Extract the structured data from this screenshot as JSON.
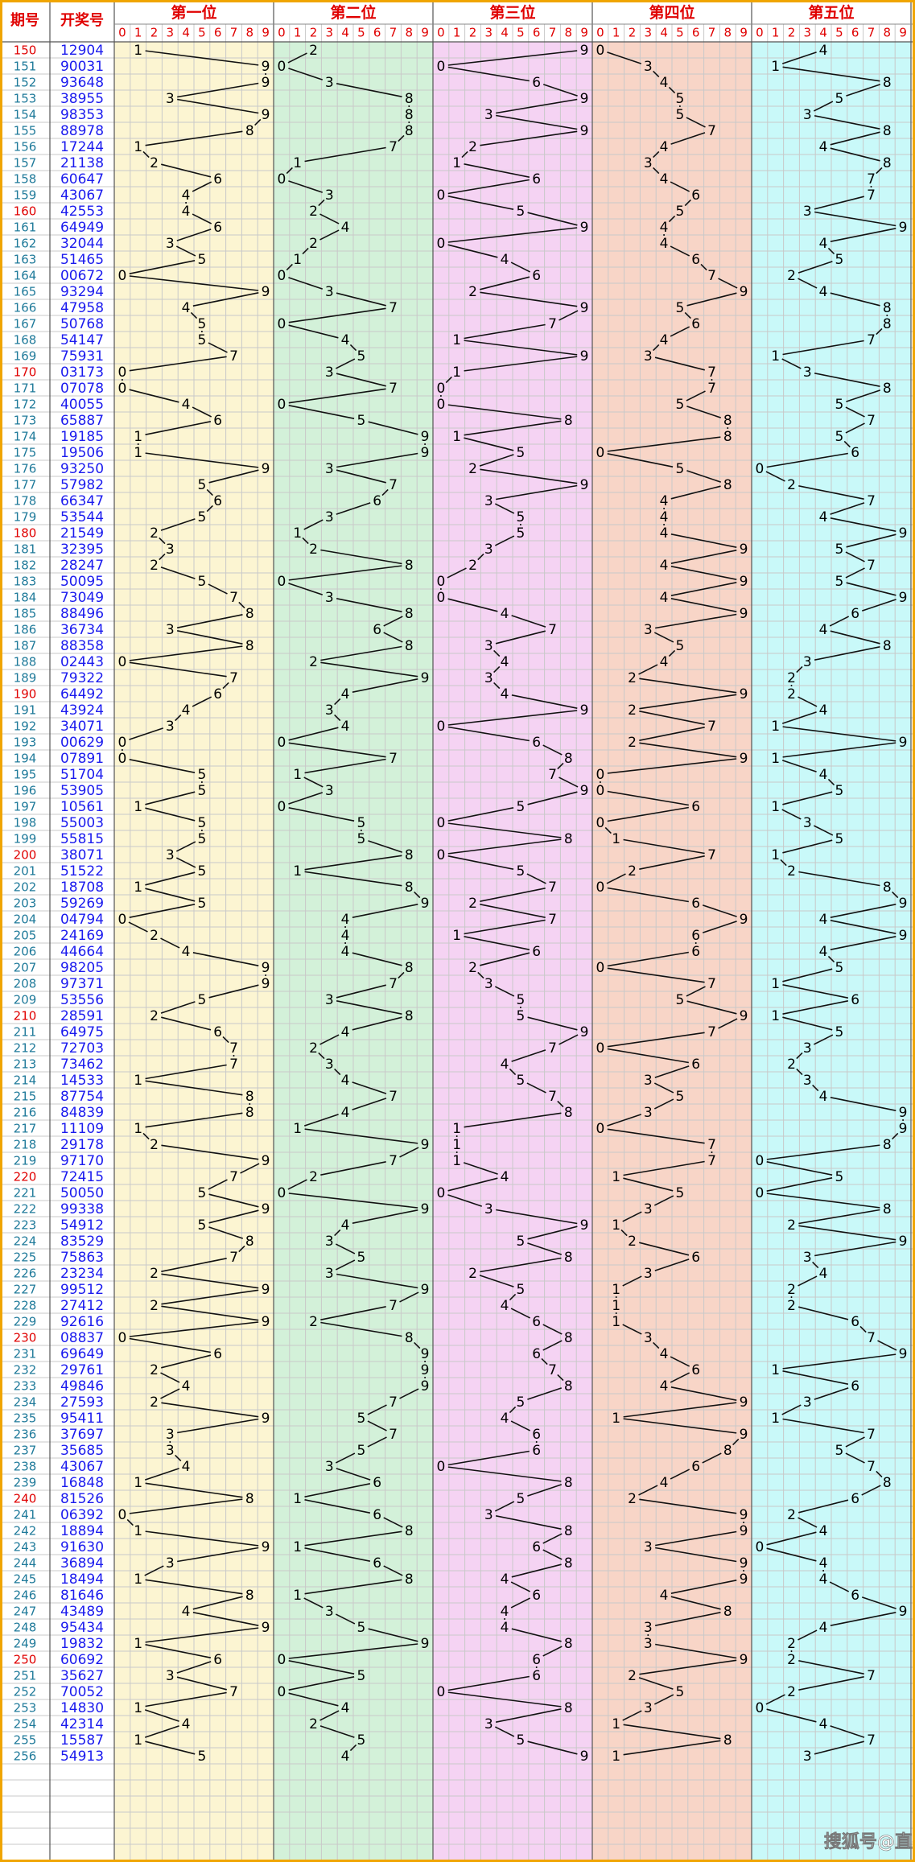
{
  "chart_data": {
    "type": "trend",
    "columns": [
      "期号",
      "开奖号"
    ],
    "positions": [
      "第一位",
      "第二位",
      "第三位",
      "第四位",
      "第五位"
    ],
    "digits": [
      0,
      1,
      2,
      3,
      4,
      5,
      6,
      7,
      8,
      9
    ],
    "colors": [
      "#fcf5d2",
      "#d3f1d9",
      "#f5d3f3",
      "#f8d5c7",
      "#c9f9f9"
    ],
    "periods": [
      150,
      151,
      152,
      153,
      154,
      155,
      156,
      157,
      158,
      159,
      160,
      161,
      162,
      163,
      164,
      165,
      166,
      167,
      168,
      169,
      170,
      171,
      172,
      173,
      174,
      175,
      176,
      177,
      178,
      179,
      180,
      181,
      182,
      183,
      184,
      185,
      186,
      187,
      188,
      189,
      190,
      191,
      192,
      193,
      194,
      195,
      196,
      197,
      198,
      199,
      200,
      201,
      202,
      203,
      204,
      205,
      206,
      207,
      208,
      209,
      210,
      211,
      212,
      213,
      214,
      215,
      216,
      217,
      218,
      219,
      220,
      221,
      222,
      223,
      224,
      225,
      226,
      227,
      228,
      229,
      230,
      231,
      232,
      233,
      234,
      235,
      236,
      237,
      238,
      239,
      240,
      241,
      242,
      243,
      244,
      245,
      246,
      247,
      248,
      249,
      250,
      251,
      252,
      253,
      254,
      255,
      256
    ],
    "draws": [
      "12904",
      "90031",
      "93648",
      "38955",
      "98353",
      "88978",
      "17244",
      "21138",
      "60647",
      "43067",
      "42553",
      "64949",
      "32044",
      "51465",
      "00672",
      "93294",
      "47958",
      "50768",
      "54147",
      "75931",
      "03173",
      "07078",
      "40055",
      "65887",
      "19185",
      "19506",
      "93250",
      "57982",
      "66347",
      "53544",
      "21549",
      "32395",
      "28247",
      "50095",
      "73049",
      "88496",
      "36734",
      "88358",
      "02443",
      "79322",
      "64492",
      "43924",
      "34071",
      "00629",
      "07891",
      "51704",
      "53905",
      "10561",
      "55003",
      "55815",
      "38071",
      "51522",
      "18708",
      "59269",
      "04794",
      "24169",
      "44664",
      "98205",
      "97371",
      "53556",
      "28591",
      "64975",
      "72703",
      "73462",
      "14533",
      "87754",
      "84839",
      "11109",
      "29178",
      "97170",
      "72415",
      "50050",
      "99338",
      "54912",
      "83529",
      "75863",
      "23234",
      "99512",
      "27412",
      "92616",
      "08837",
      "69649",
      "29761",
      "49846",
      "27593",
      "95411",
      "37697",
      "35685",
      "43067",
      "16848",
      "81526",
      "06392",
      "18894",
      "91630",
      "36894",
      "18494",
      "81646",
      "43489",
      "95434",
      "19832",
      "60692",
      "35627",
      "70052",
      "14830",
      "42314",
      "15587",
      "54913"
    ],
    "watermark": "搜狐号@直播间live"
  }
}
